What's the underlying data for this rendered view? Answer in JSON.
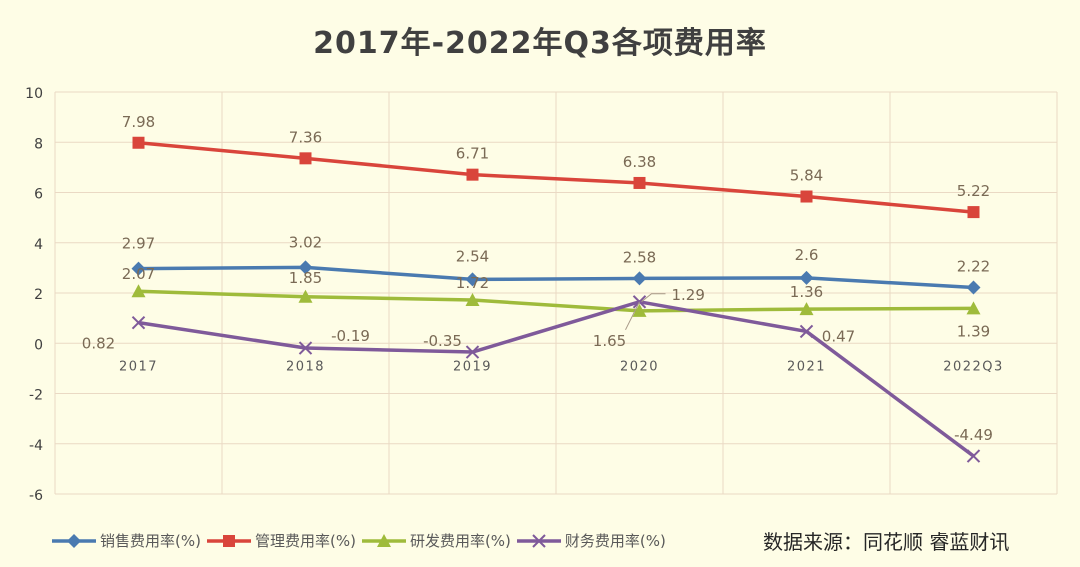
{
  "chart_data": {
    "type": "line",
    "title": "2017年-2022年Q3各项费用率",
    "categories": [
      "2017",
      "2018",
      "2019",
      "2020",
      "2021",
      "2022Q3"
    ],
    "ylim": [
      -6,
      10
    ],
    "yticks": [
      "10",
      "8",
      "6",
      "4",
      "2",
      "0",
      "-2",
      "-4",
      "-6"
    ],
    "grid": true,
    "legend_position": "bottom-left",
    "series": [
      {
        "name": "销售费用率(%)",
        "color": "#4a7ab0",
        "marker": "diamond",
        "values": [
          2.97,
          3.02,
          2.54,
          2.58,
          2.6,
          2.22
        ],
        "labels": [
          "2.97",
          "3.02",
          "2.54",
          "2.58",
          "2.6",
          "2.22"
        ]
      },
      {
        "name": "管理费用率(%)",
        "color": "#d9453b",
        "marker": "square",
        "values": [
          7.98,
          7.36,
          6.71,
          6.38,
          5.84,
          5.22
        ],
        "labels": [
          "7.98",
          "7.36",
          "6.71",
          "6.38",
          "5.84",
          "5.22"
        ]
      },
      {
        "name": "研发费用率(%)",
        "color": "#9fbb3b",
        "marker": "triangle",
        "values": [
          2.07,
          1.85,
          1.72,
          1.29,
          1.36,
          1.39
        ],
        "labels": [
          "2.07",
          "1.85",
          "1.72",
          "1.29",
          "1.36",
          "1.39"
        ]
      },
      {
        "name": "财务费用率(%)",
        "color": "#7f5a9a",
        "marker": "x",
        "values": [
          0.82,
          -0.19,
          -0.35,
          1.65,
          0.47,
          -4.49
        ],
        "labels": [
          "0.82",
          "-0.19",
          "-0.35",
          "1.65",
          "0.47",
          "-4.49"
        ]
      }
    ]
  },
  "source": "数据来源：同花顺 睿蓝财讯"
}
